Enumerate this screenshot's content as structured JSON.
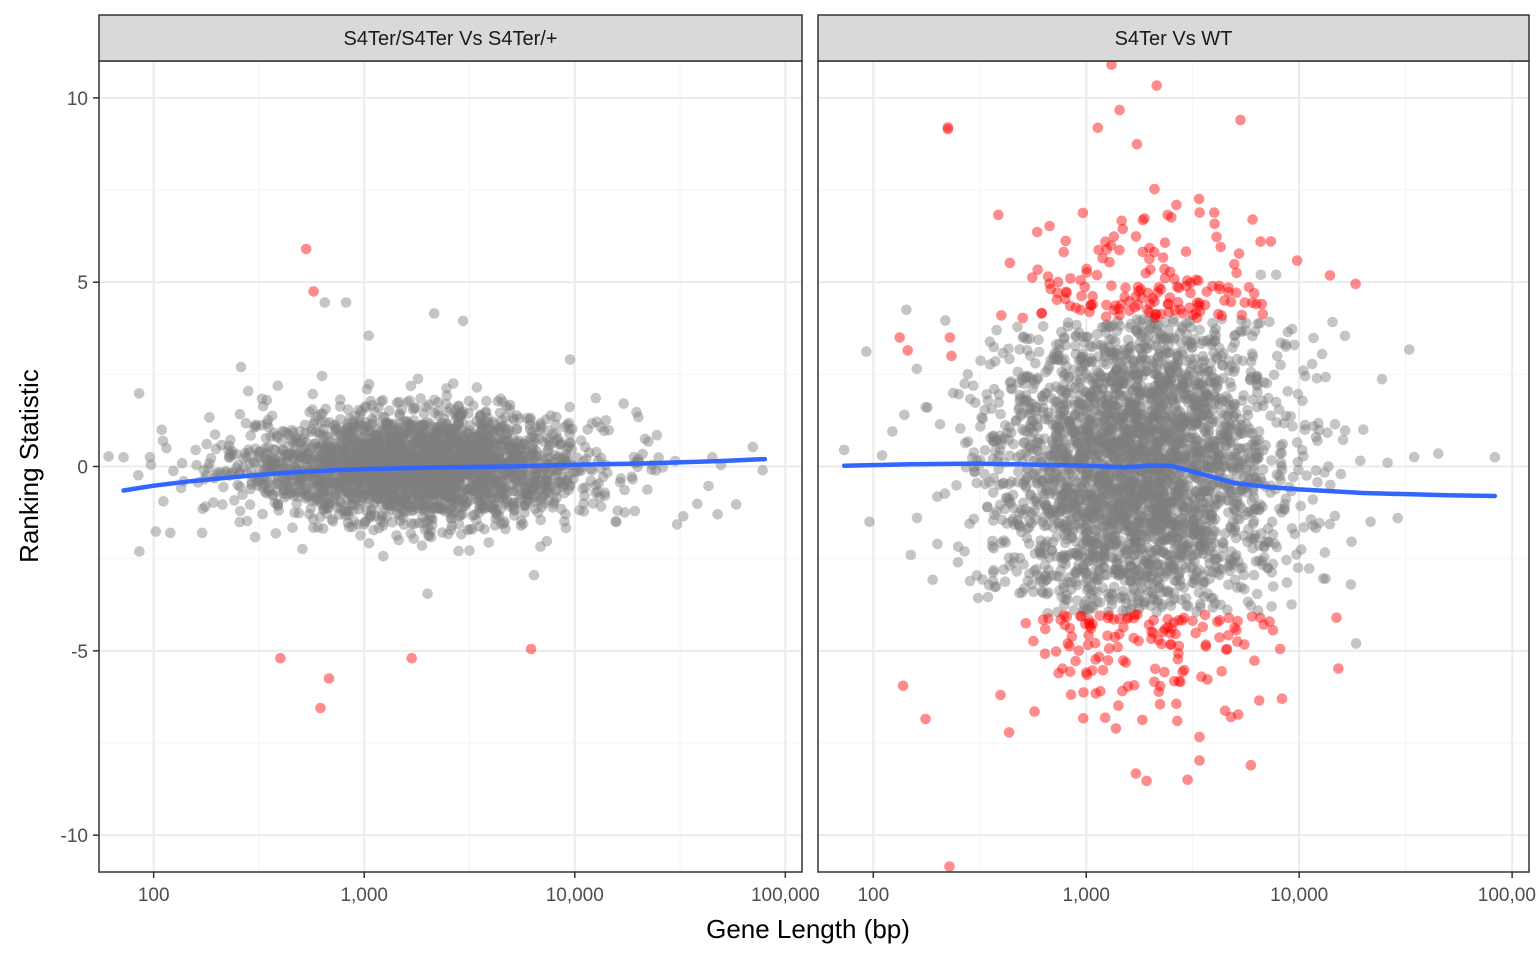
{
  "colors": {
    "background": "#ffffff",
    "strip_fill": "#d9d9d9",
    "grid_major": "#ebebeb",
    "panel_border": "#333333",
    "points_default": "#7f7f7f",
    "points_highlight": "#ff0000",
    "trend_line": "#3366ff"
  },
  "chart_data": {
    "type": "scatter",
    "xlabel": "Gene Length (bp)",
    "ylabel": "Ranking Statistic",
    "x_scale": "log10",
    "xlim": [
      55,
      120000
    ],
    "ylim": [
      -11,
      11
    ],
    "x_ticks": [
      100,
      1000,
      10000,
      100000
    ],
    "x_tick_labels": [
      "100",
      "1,000",
      "10,000",
      "100,000"
    ],
    "y_ticks": [
      -10,
      -5,
      0,
      5,
      10
    ],
    "y_tick_labels": [
      "-10",
      "-5",
      "0",
      "5",
      "10"
    ],
    "grid": true,
    "legend": "none",
    "facets": [
      {
        "label": "S4Ter/S4Ter Vs S4Ter/+",
        "cloud": {
          "n_points": 2600,
          "center_length": 1800,
          "log_sd": 0.42,
          "y_sd": 0.75,
          "color": "gray"
        },
        "highlighted_points": [
          {
            "x": 530,
            "y": 5.9
          },
          {
            "x": 575,
            "y": 4.75
          },
          {
            "x": 400,
            "y": -5.2
          },
          {
            "x": 680,
            "y": -5.75
          },
          {
            "x": 620,
            "y": -6.55
          },
          {
            "x": 1680,
            "y": -5.2
          },
          {
            "x": 6200,
            "y": -4.95
          }
        ],
        "outlier_points": [
          {
            "x": 72,
            "y": 0.25
          },
          {
            "x": 97,
            "y": 0.05
          },
          {
            "x": 115,
            "y": 0.5
          },
          {
            "x": 260,
            "y": 2.7
          },
          {
            "x": 650,
            "y": 4.45
          },
          {
            "x": 820,
            "y": 4.45
          },
          {
            "x": 1050,
            "y": 3.55
          },
          {
            "x": 2150,
            "y": 4.15
          },
          {
            "x": 2950,
            "y": 3.95
          },
          {
            "x": 20000,
            "y": 0.2
          },
          {
            "x": 30000,
            "y": 0.15
          },
          {
            "x": 45000,
            "y": 0.25
          },
          {
            "x": 78000,
            "y": -0.1
          },
          {
            "x": 16000,
            "y": -1.2
          },
          {
            "x": 9500,
            "y": 2.9
          },
          {
            "x": 6400,
            "y": -2.95
          },
          {
            "x": 2000,
            "y": -3.45
          },
          {
            "x": 120,
            "y": -1.8
          },
          {
            "x": 170,
            "y": -1.8
          }
        ],
        "trend": {
          "x": [
            72,
            100,
            150,
            250,
            400,
            700,
            1000,
            2000,
            5000,
            10000,
            20000,
            50000,
            80000
          ],
          "y": [
            -0.65,
            -0.52,
            -0.4,
            -0.28,
            -0.18,
            -0.1,
            -0.07,
            -0.03,
            0.0,
            0.05,
            0.08,
            0.15,
            0.2
          ]
        }
      },
      {
        "label": "S4Ter Vs WT",
        "cloud": {
          "n_points": 3400,
          "center_length": 1800,
          "log_sd": 0.33,
          "y_sd": 2.2,
          "color": "gray",
          "highlight_above_abs": 4.0
        },
        "highlighted_points": [
          {
            "x": 133,
            "y": 3.5
          },
          {
            "x": 145,
            "y": 3.15
          },
          {
            "x": 224,
            "y": 9.15
          },
          {
            "x": 224,
            "y": 9.2
          },
          {
            "x": 229,
            "y": 3.5
          },
          {
            "x": 233,
            "y": 3.0
          },
          {
            "x": 138,
            "y": -5.95
          },
          {
            "x": 176,
            "y": -6.85
          },
          {
            "x": 228,
            "y": -10.85
          },
          {
            "x": 5300,
            "y": 9.4
          },
          {
            "x": 8300,
            "y": -6.3
          }
        ],
        "outlier_points": [
          {
            "x": 73,
            "y": 0.45
          },
          {
            "x": 96,
            "y": -1.5
          },
          {
            "x": 110,
            "y": 0.3
          },
          {
            "x": 123,
            "y": 0.95
          },
          {
            "x": 143,
            "y": 4.25
          },
          {
            "x": 140,
            "y": 1.4
          },
          {
            "x": 150,
            "y": -2.4
          },
          {
            "x": 160,
            "y": 2.65
          },
          {
            "x": 180,
            "y": 1.6
          },
          {
            "x": 200,
            "y": -2.1
          },
          {
            "x": 250,
            "y": -2.6
          },
          {
            "x": 9500,
            "y": 3.3
          },
          {
            "x": 12000,
            "y": 0.8
          },
          {
            "x": 14000,
            "y": -0.5
          },
          {
            "x": 17500,
            "y": -3.2
          },
          {
            "x": 18500,
            "y": -4.8
          },
          {
            "x": 20000,
            "y": 1.0
          },
          {
            "x": 26000,
            "y": 0.1
          },
          {
            "x": 29000,
            "y": -1.4
          },
          {
            "x": 45000,
            "y": 0.35
          },
          {
            "x": 83000,
            "y": 0.25
          },
          {
            "x": 7800,
            "y": 5.2
          },
          {
            "x": 6600,
            "y": 5.2
          }
        ],
        "trend": {
          "x": [
            73,
            150,
            300,
            600,
            1000,
            1500,
            2000,
            2500,
            3000,
            4000,
            5000,
            7000,
            10000,
            20000,
            50000,
            83000
          ],
          "y": [
            0.02,
            0.06,
            0.08,
            0.05,
            0.02,
            -0.02,
            0.02,
            0.02,
            -0.1,
            -0.3,
            -0.45,
            -0.55,
            -0.62,
            -0.72,
            -0.78,
            -0.8
          ]
        }
      }
    ]
  }
}
